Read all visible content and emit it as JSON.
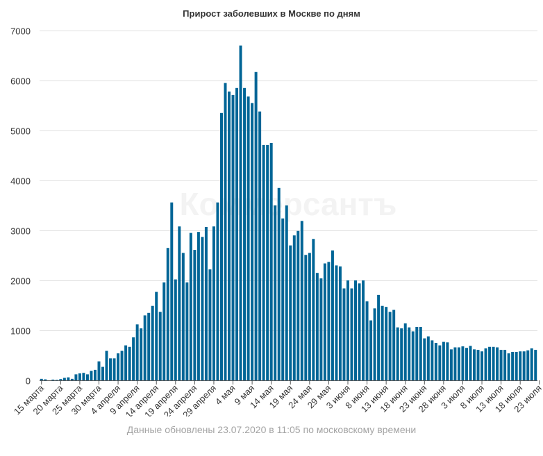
{
  "chart_data": {
    "type": "bar",
    "title": "Прирост заболевших в Москве по дням",
    "footer": "Данные обновлены 23.07.2020 в 11:05 по московскому времени",
    "watermark": "Коммерсантъ",
    "bar_color": "#006596",
    "ylim": [
      0,
      7000
    ],
    "y_ticks": [
      0,
      1000,
      2000,
      3000,
      4000,
      5000,
      6000,
      7000
    ],
    "grid": true,
    "x_tick_labels": [
      {
        "index": 0,
        "label": "15 марта"
      },
      {
        "index": 5,
        "label": "20 марта"
      },
      {
        "index": 10,
        "label": "25 марта"
      },
      {
        "index": 15,
        "label": "30 марта"
      },
      {
        "index": 20,
        "label": "4 апреля"
      },
      {
        "index": 25,
        "label": "9 апреля"
      },
      {
        "index": 30,
        "label": "14 апреля"
      },
      {
        "index": 35,
        "label": "19 апреля"
      },
      {
        "index": 40,
        "label": "24 апреля"
      },
      {
        "index": 45,
        "label": "29 апреля"
      },
      {
        "index": 50,
        "label": "4 мая"
      },
      {
        "index": 55,
        "label": "9 мая"
      },
      {
        "index": 60,
        "label": "14 мая"
      },
      {
        "index": 65,
        "label": "19 мая"
      },
      {
        "index": 70,
        "label": "24 мая"
      },
      {
        "index": 75,
        "label": "29 мая"
      },
      {
        "index": 80,
        "label": "3 июня"
      },
      {
        "index": 85,
        "label": "8 июня"
      },
      {
        "index": 90,
        "label": "13 июня"
      },
      {
        "index": 95,
        "label": "18 июня"
      },
      {
        "index": 100,
        "label": "23 июня"
      },
      {
        "index": 105,
        "label": "28 июня"
      },
      {
        "index": 110,
        "label": "3 июля"
      },
      {
        "index": 115,
        "label": "8 июля"
      },
      {
        "index": 120,
        "label": "13 июля"
      },
      {
        "index": 125,
        "label": "18 июля"
      },
      {
        "index": 130,
        "label": "23 июля"
      }
    ],
    "values": [
      30,
      20,
      0,
      15,
      10,
      25,
      50,
      60,
      30,
      120,
      140,
      150,
      120,
      190,
      210,
      380,
      270,
      590,
      440,
      440,
      540,
      590,
      700,
      670,
      860,
      1120,
      1040,
      1300,
      1350,
      1490,
      1770,
      1370,
      1960,
      2650,
      3560,
      2020,
      3080,
      2550,
      1960,
      2950,
      2610,
      2970,
      2870,
      3070,
      2220,
      3080,
      3560,
      5350,
      5950,
      5780,
      5710,
      5850,
      6700,
      5850,
      5680,
      5550,
      6170,
      5380,
      4710,
      4710,
      4750,
      3500,
      3850,
      3240,
      3500,
      2700,
      2900,
      2990,
      3190,
      2510,
      2550,
      2830,
      2150,
      2040,
      2340,
      2370,
      2600,
      2300,
      2280,
      1840,
      2000,
      1840,
      2000,
      1940,
      2000,
      1580,
      1200,
      1440,
      1710,
      1490,
      1470,
      1370,
      1410,
      1060,
      1040,
      1140,
      1060,
      980,
      1070,
      1070,
      840,
      880,
      800,
      750,
      700,
      770,
      760,
      620,
      660,
      660,
      680,
      650,
      690,
      620,
      610,
      580,
      640,
      670,
      670,
      660,
      610,
      610,
      540,
      570,
      570,
      580,
      580,
      600,
      640,
      610
    ]
  }
}
